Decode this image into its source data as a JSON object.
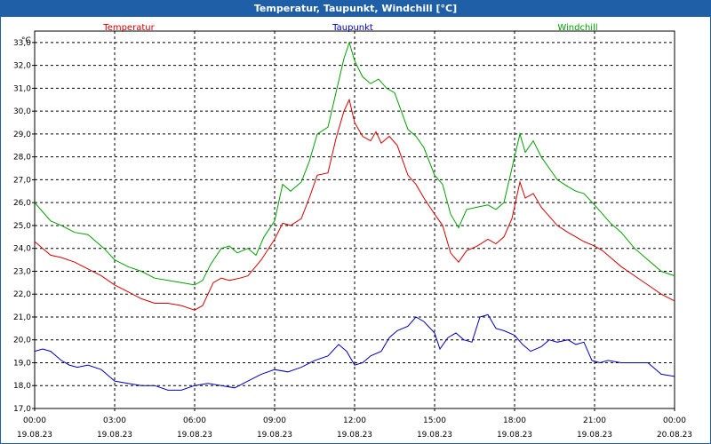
{
  "window": {
    "title": "Temperatur, Taupunkt, Windchill [°C]"
  },
  "chart_data": {
    "type": "line",
    "unit_label": "°C",
    "ylim": [
      17.0,
      33.5
    ],
    "y_ticks": [
      17.0,
      18.0,
      19.0,
      20.0,
      21.0,
      22.0,
      23.0,
      24.0,
      25.0,
      26.0,
      27.0,
      28.0,
      29.0,
      30.0,
      31.0,
      32.0,
      33.0
    ],
    "y_tick_labels": [
      "17,0",
      "18,0",
      "19,0",
      "20,0",
      "21,0",
      "22,0",
      "23,0",
      "24,0",
      "25,0",
      "26,0",
      "27,0",
      "28,0",
      "29,0",
      "30,0",
      "31,0",
      "32,0",
      "33,0"
    ],
    "xlim": [
      0,
      24
    ],
    "x_ticks": [
      {
        "h": 0,
        "time": "00:00",
        "date": "19.08.23"
      },
      {
        "h": 3,
        "time": "03:00",
        "date": "19.08.23"
      },
      {
        "h": 6,
        "time": "06:00",
        "date": "19.08.23"
      },
      {
        "h": 9,
        "time": "09:00",
        "date": "19.08.23"
      },
      {
        "h": 12,
        "time": "12:00",
        "date": "19.08.23"
      },
      {
        "h": 15,
        "time": "15:00",
        "date": "19.08.23"
      },
      {
        "h": 18,
        "time": "18:00",
        "date": "19.08.23"
      },
      {
        "h": 21,
        "time": "21:00",
        "date": "19.08.23"
      },
      {
        "h": 24,
        "time": "00:00",
        "date": "20.08.23"
      }
    ],
    "grid": true,
    "series": [
      {
        "name": "Temperatur",
        "color": "#d40000",
        "points": [
          [
            0,
            24.3
          ],
          [
            0.3,
            24.0
          ],
          [
            0.6,
            23.7
          ],
          [
            1.0,
            23.6
          ],
          [
            1.5,
            23.4
          ],
          [
            2.0,
            23.1
          ],
          [
            2.5,
            22.8
          ],
          [
            3.0,
            22.4
          ],
          [
            3.5,
            22.1
          ],
          [
            4.0,
            21.8
          ],
          [
            4.5,
            21.6
          ],
          [
            5.0,
            21.6
          ],
          [
            5.5,
            21.5
          ],
          [
            6.0,
            21.3
          ],
          [
            6.3,
            21.5
          ],
          [
            6.7,
            22.5
          ],
          [
            7.0,
            22.7
          ],
          [
            7.3,
            22.6
          ],
          [
            7.7,
            22.7
          ],
          [
            8.0,
            22.8
          ],
          [
            8.5,
            23.5
          ],
          [
            9.0,
            24.4
          ],
          [
            9.3,
            25.1
          ],
          [
            9.6,
            25.0
          ],
          [
            10.0,
            25.3
          ],
          [
            10.3,
            26.2
          ],
          [
            10.6,
            27.2
          ],
          [
            11.0,
            27.3
          ],
          [
            11.3,
            28.8
          ],
          [
            11.6,
            30.0
          ],
          [
            11.8,
            30.5
          ],
          [
            12.0,
            29.5
          ],
          [
            12.3,
            28.9
          ],
          [
            12.6,
            28.7
          ],
          [
            12.8,
            29.1
          ],
          [
            13.0,
            28.6
          ],
          [
            13.3,
            28.9
          ],
          [
            13.6,
            28.5
          ],
          [
            14.0,
            27.2
          ],
          [
            14.3,
            26.8
          ],
          [
            14.6,
            26.2
          ],
          [
            15.0,
            25.5
          ],
          [
            15.3,
            25.0
          ],
          [
            15.6,
            23.8
          ],
          [
            15.9,
            23.4
          ],
          [
            16.2,
            23.9
          ],
          [
            16.6,
            24.1
          ],
          [
            17.0,
            24.4
          ],
          [
            17.3,
            24.2
          ],
          [
            17.6,
            24.5
          ],
          [
            17.9,
            25.3
          ],
          [
            18.2,
            26.9
          ],
          [
            18.4,
            26.2
          ],
          [
            18.7,
            26.4
          ],
          [
            19.0,
            25.8
          ],
          [
            19.3,
            25.4
          ],
          [
            19.6,
            25.0
          ],
          [
            20.0,
            24.7
          ],
          [
            20.3,
            24.5
          ],
          [
            20.6,
            24.3
          ],
          [
            21.0,
            24.1
          ],
          [
            21.3,
            23.9
          ],
          [
            21.6,
            23.6
          ],
          [
            22.0,
            23.2
          ],
          [
            22.5,
            22.8
          ],
          [
            23.0,
            22.4
          ],
          [
            23.5,
            22.0
          ],
          [
            24.0,
            21.7
          ]
        ]
      },
      {
        "name": "Taupunkt",
        "color": "#0000c0",
        "points": [
          [
            0,
            19.5
          ],
          [
            0.3,
            19.6
          ],
          [
            0.6,
            19.5
          ],
          [
            1.0,
            19.1
          ],
          [
            1.3,
            18.9
          ],
          [
            1.6,
            18.8
          ],
          [
            2.0,
            18.9
          ],
          [
            2.5,
            18.7
          ],
          [
            3.0,
            18.2
          ],
          [
            3.5,
            18.1
          ],
          [
            4.0,
            18.0
          ],
          [
            4.5,
            18.0
          ],
          [
            5.0,
            17.8
          ],
          [
            5.5,
            17.8
          ],
          [
            6.0,
            18.0
          ],
          [
            6.5,
            18.1
          ],
          [
            7.0,
            18.0
          ],
          [
            7.5,
            17.9
          ],
          [
            8.0,
            18.2
          ],
          [
            8.5,
            18.5
          ],
          [
            9.0,
            18.7
          ],
          [
            9.5,
            18.6
          ],
          [
            10.0,
            18.8
          ],
          [
            10.5,
            19.1
          ],
          [
            11.0,
            19.3
          ],
          [
            11.4,
            19.8
          ],
          [
            11.7,
            19.5
          ],
          [
            12.0,
            18.9
          ],
          [
            12.3,
            19.0
          ],
          [
            12.6,
            19.3
          ],
          [
            13.0,
            19.5
          ],
          [
            13.3,
            20.1
          ],
          [
            13.6,
            20.4
          ],
          [
            14.0,
            20.6
          ],
          [
            14.3,
            21.0
          ],
          [
            14.6,
            20.8
          ],
          [
            15.0,
            20.3
          ],
          [
            15.2,
            19.6
          ],
          [
            15.5,
            20.1
          ],
          [
            15.8,
            20.3
          ],
          [
            16.1,
            20.0
          ],
          [
            16.4,
            19.9
          ],
          [
            16.7,
            21.0
          ],
          [
            17.0,
            21.1
          ],
          [
            17.3,
            20.5
          ],
          [
            17.6,
            20.4
          ],
          [
            18.0,
            20.2
          ],
          [
            18.3,
            19.8
          ],
          [
            18.6,
            19.5
          ],
          [
            19.0,
            19.7
          ],
          [
            19.3,
            20.0
          ],
          [
            19.6,
            19.9
          ],
          [
            20.0,
            20.0
          ],
          [
            20.3,
            19.8
          ],
          [
            20.6,
            19.9
          ],
          [
            20.9,
            19.1
          ],
          [
            21.2,
            19.0
          ],
          [
            21.5,
            19.1
          ],
          [
            22.0,
            19.0
          ],
          [
            22.5,
            19.0
          ],
          [
            23.0,
            19.0
          ],
          [
            23.5,
            18.5
          ],
          [
            24.0,
            18.4
          ]
        ]
      },
      {
        "name": "Windchill",
        "color": "#00a000",
        "points": [
          [
            0,
            26.0
          ],
          [
            0.3,
            25.6
          ],
          [
            0.6,
            25.2
          ],
          [
            1.0,
            25.0
          ],
          [
            1.5,
            24.7
          ],
          [
            2.0,
            24.6
          ],
          [
            2.3,
            24.3
          ],
          [
            2.6,
            24.0
          ],
          [
            3.0,
            23.5
          ],
          [
            3.5,
            23.2
          ],
          [
            4.0,
            23.0
          ],
          [
            4.5,
            22.7
          ],
          [
            5.0,
            22.6
          ],
          [
            5.5,
            22.5
          ],
          [
            6.0,
            22.4
          ],
          [
            6.3,
            22.6
          ],
          [
            6.6,
            23.3
          ],
          [
            7.0,
            24.0
          ],
          [
            7.3,
            24.1
          ],
          [
            7.6,
            23.8
          ],
          [
            8.0,
            24.0
          ],
          [
            8.3,
            23.7
          ],
          [
            8.6,
            24.5
          ],
          [
            9.0,
            25.2
          ],
          [
            9.3,
            26.8
          ],
          [
            9.6,
            26.5
          ],
          [
            10.0,
            26.9
          ],
          [
            10.3,
            27.8
          ],
          [
            10.6,
            29.0
          ],
          [
            11.0,
            29.3
          ],
          [
            11.3,
            30.8
          ],
          [
            11.6,
            32.3
          ],
          [
            11.8,
            33.0
          ],
          [
            12.0,
            32.2
          ],
          [
            12.3,
            31.5
          ],
          [
            12.6,
            31.2
          ],
          [
            12.9,
            31.4
          ],
          [
            13.2,
            31.0
          ],
          [
            13.5,
            30.8
          ],
          [
            14.0,
            29.2
          ],
          [
            14.3,
            28.9
          ],
          [
            14.6,
            28.4
          ],
          [
            15.0,
            27.2
          ],
          [
            15.3,
            26.8
          ],
          [
            15.6,
            25.5
          ],
          [
            15.9,
            24.9
          ],
          [
            16.2,
            25.7
          ],
          [
            16.6,
            25.8
          ],
          [
            17.0,
            25.9
          ],
          [
            17.3,
            25.7
          ],
          [
            17.6,
            26.0
          ],
          [
            17.9,
            27.5
          ],
          [
            18.2,
            29.0
          ],
          [
            18.4,
            28.2
          ],
          [
            18.7,
            28.7
          ],
          [
            19.0,
            28.0
          ],
          [
            19.3,
            27.5
          ],
          [
            19.6,
            27.0
          ],
          [
            20.0,
            26.7
          ],
          [
            20.3,
            26.5
          ],
          [
            20.6,
            26.4
          ],
          [
            21.0,
            25.9
          ],
          [
            21.3,
            25.5
          ],
          [
            21.6,
            25.1
          ],
          [
            22.0,
            24.7
          ],
          [
            22.5,
            24.0
          ],
          [
            23.0,
            23.5
          ],
          [
            23.5,
            23.0
          ],
          [
            24.0,
            22.8
          ]
        ]
      }
    ]
  }
}
